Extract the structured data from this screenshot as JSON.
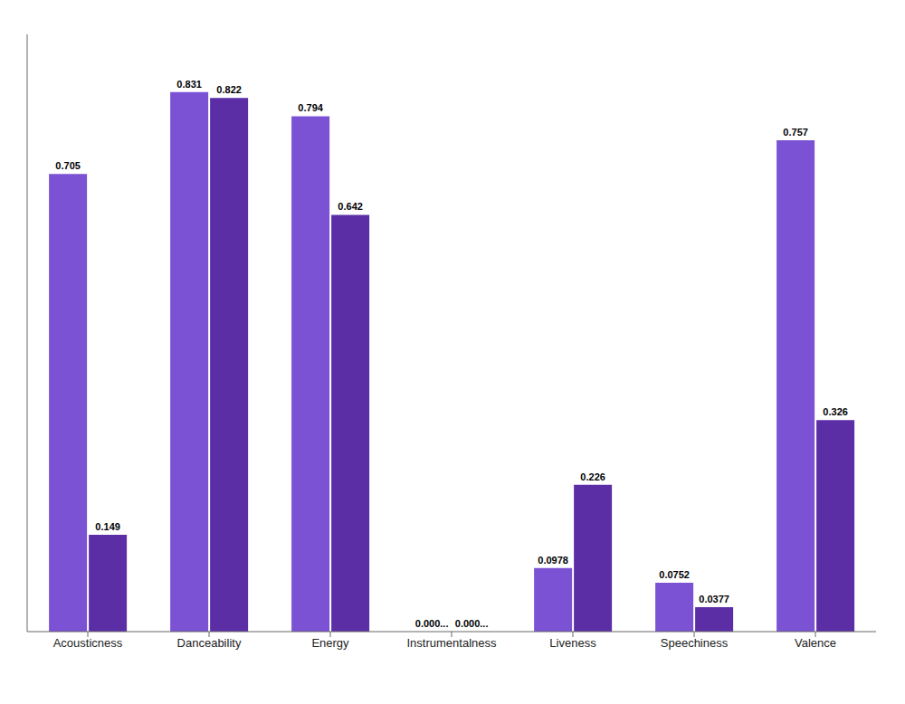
{
  "chart_data": {
    "type": "bar",
    "categories": [
      "Acousticness",
      "Danceability",
      "Energy",
      "Instrumentalness",
      "Liveness",
      "Speechiness",
      "Valence"
    ],
    "series": [
      {
        "color": "#7B52D3",
        "values": [
          0.705,
          0.831,
          0.794,
          1e-06,
          0.0978,
          0.0752,
          0.757
        ],
        "value_labels": [
          "0.705",
          "0.831",
          "0.794",
          "0.000...",
          "0.0978",
          "0.0752",
          "0.757"
        ]
      },
      {
        "color": "#5B2EA6",
        "values": [
          0.149,
          0.822,
          0.642,
          1e-06,
          0.226,
          0.0377,
          0.326
        ],
        "value_labels": [
          "0.149",
          "0.822",
          "0.642",
          "0.000...",
          "0.226",
          "0.0377",
          "0.326"
        ]
      }
    ],
    "ylim": [
      0,
      0.92
    ],
    "grid": false,
    "data_labels": true,
    "tick_labels": "x"
  }
}
